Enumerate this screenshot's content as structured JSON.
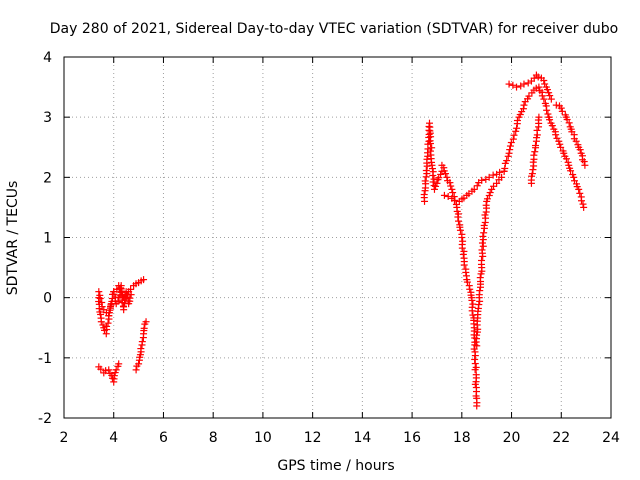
{
  "chart_data": {
    "type": "scatter",
    "title": "Day 280 of 2021, Sidereal Day-to-day VTEC variation (SDTVAR) for receiver dubo",
    "xlabel": "GPS time / hours",
    "ylabel": "SDTVAR / TECUs",
    "xlim": [
      2,
      24
    ],
    "ylim": [
      -2,
      4
    ],
    "xticks": [
      "2",
      "4",
      "6",
      "8",
      "10",
      "12",
      "14",
      "16",
      "18",
      "20",
      "22",
      "24"
    ],
    "yticks": [
      "4",
      "3",
      "2",
      "1",
      "0",
      "-1",
      "-2"
    ],
    "grid": true,
    "marker": "+",
    "colors": {
      "series": "#ff0000",
      "axis": "#000000",
      "grid": "#a0a0a0"
    },
    "series": [
      {
        "name": "dubo",
        "segments": [
          {
            "x": [
              3.4,
              3.6,
              3.8,
              4.0,
              4.2,
              4.4,
              4.6,
              4.8,
              5.0,
              5.2
            ],
            "y": [
              0.1,
              -0.2,
              -0.3,
              0.1,
              0.2,
              0.0,
              0.1,
              0.2,
              0.25,
              0.3
            ]
          },
          {
            "x": [
              3.4,
              3.5,
              3.6,
              3.7,
              3.8,
              3.9
            ],
            "y": [
              0.0,
              -0.4,
              -0.5,
              -0.6,
              -0.3,
              -0.1
            ]
          },
          {
            "x": [
              4.0,
              4.1,
              4.2,
              4.3,
              4.4,
              4.5,
              4.6,
              4.7
            ],
            "y": [
              0.1,
              -0.1,
              0.0,
              0.2,
              -0.2,
              0.1,
              -0.1,
              0.05
            ]
          },
          {
            "x": [
              3.4,
              3.6,
              3.8,
              4.0,
              4.1,
              4.2
            ],
            "y": [
              -1.15,
              -1.25,
              -1.2,
              -1.4,
              -1.2,
              -1.1
            ]
          },
          {
            "x": [
              4.9,
              5.0,
              5.1,
              5.2,
              5.3
            ],
            "y": [
              -1.2,
              -1.1,
              -0.9,
              -0.6,
              -0.4
            ]
          },
          {
            "x": [
              16.5,
              16.6,
              16.7,
              16.8,
              16.9,
              17.0,
              17.2
            ],
            "y": [
              1.6,
              2.3,
              2.9,
              2.2,
              1.8,
              1.9,
              2.1
            ]
          },
          {
            "x": [
              17.2,
              17.4,
              17.6,
              17.8,
              18.0,
              18.1,
              18.2,
              18.3,
              18.4,
              18.5,
              18.6
            ],
            "y": [
              2.2,
              2.0,
              1.8,
              1.5,
              1.0,
              0.6,
              0.3,
              0.2,
              0.0,
              -0.5,
              -1.8
            ]
          },
          {
            "x": [
              18.6,
              18.7,
              18.8,
              18.9,
              19.0,
              19.2,
              19.4,
              19.6
            ],
            "y": [
              -0.8,
              0.0,
              0.5,
              1.2,
              1.6,
              1.8,
              1.9,
              2.0
            ]
          },
          {
            "x": [
              17.3,
              17.6,
              17.9,
              18.2,
              18.5,
              18.8,
              19.1,
              19.4,
              19.7
            ],
            "y": [
              1.7,
              1.65,
              1.6,
              1.7,
              1.8,
              1.95,
              2.0,
              2.05,
              2.1
            ]
          },
          {
            "x": [
              19.7,
              19.9,
              20.1,
              20.3,
              20.5,
              20.7,
              20.9,
              21.1,
              21.3,
              21.5
            ],
            "y": [
              2.1,
              2.4,
              2.7,
              3.0,
              3.2,
              3.35,
              3.45,
              3.5,
              3.3,
              3.0
            ]
          },
          {
            "x": [
              19.9,
              20.2,
              20.5,
              20.8,
              21.0,
              21.2,
              21.4,
              21.6
            ],
            "y": [
              3.55,
              3.5,
              3.55,
              3.6,
              3.7,
              3.65,
              3.5,
              3.3
            ]
          },
          {
            "x": [
              21.5,
              21.7,
              21.9,
              22.1,
              22.3,
              22.5,
              22.7,
              22.9
            ],
            "y": [
              3.0,
              2.8,
              2.6,
              2.4,
              2.2,
              2.0,
              1.8,
              1.5
            ]
          },
          {
            "x": [
              21.8,
              22.0,
              22.2,
              22.4,
              22.6,
              22.8,
              22.95
            ],
            "y": [
              3.2,
              3.15,
              3.0,
              2.8,
              2.6,
              2.4,
              2.2
            ]
          },
          {
            "x": [
              20.8,
              20.9,
              21.0,
              21.1
            ],
            "y": [
              1.9,
              2.3,
              2.6,
              3.0
            ]
          }
        ]
      }
    ]
  }
}
